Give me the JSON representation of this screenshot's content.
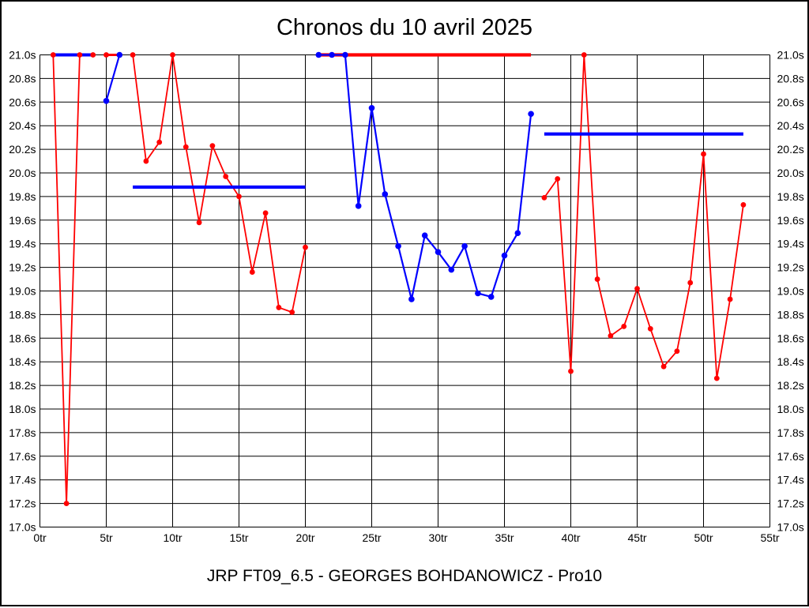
{
  "chart_data": {
    "type": "line",
    "title": "Chronos du 10 avril 2025",
    "caption": "JRP FT09_6.5 - GEORGES BOHDANOWICZ - Pro10",
    "x_unit": "tr",
    "y_unit": "s",
    "xlim": [
      0,
      55
    ],
    "ylim": [
      17.0,
      21.0
    ],
    "x_tick_step": 5,
    "y_tick_step": 0.2,
    "grid": true,
    "legend": "none",
    "colors": {
      "red": "#ff0000",
      "blue": "#0000ff",
      "grid": "#000000",
      "background": "#ffffff",
      "text": "#000000"
    },
    "x_ticks": [
      {
        "lap": 0,
        "label": "0tr"
      },
      {
        "lap": 5,
        "label": "5tr"
      },
      {
        "lap": 10,
        "label": "10tr"
      },
      {
        "lap": 15,
        "label": "15tr"
      },
      {
        "lap": 20,
        "label": "20tr"
      },
      {
        "lap": 25,
        "label": "25tr"
      },
      {
        "lap": 30,
        "label": "30tr"
      },
      {
        "lap": 35,
        "label": "35tr"
      },
      {
        "lap": 40,
        "label": "40tr"
      },
      {
        "lap": 45,
        "label": "45tr"
      },
      {
        "lap": 50,
        "label": "50tr"
      },
      {
        "lap": 55,
        "label": "55tr"
      }
    ],
    "y_ticks": [
      {
        "value": 21.0,
        "label": "21.0s"
      },
      {
        "value": 20.8,
        "label": "20.8s"
      },
      {
        "value": 20.6,
        "label": "20.6s"
      },
      {
        "value": 20.4,
        "label": "20.4s"
      },
      {
        "value": 20.2,
        "label": "20.2s"
      },
      {
        "value": 20.0,
        "label": "20.0s"
      },
      {
        "value": 19.8,
        "label": "19.8s"
      },
      {
        "value": 19.6,
        "label": "19.6s"
      },
      {
        "value": 19.4,
        "label": "19.4s"
      },
      {
        "value": 19.2,
        "label": "19.2s"
      },
      {
        "value": 19.0,
        "label": "19.0s"
      },
      {
        "value": 18.8,
        "label": "18.8s"
      },
      {
        "value": 18.6,
        "label": "18.6s"
      },
      {
        "value": 18.4,
        "label": "18.4s"
      },
      {
        "value": 18.2,
        "label": "18.2s"
      },
      {
        "value": 18.0,
        "label": "18.0s"
      },
      {
        "value": 17.8,
        "label": "17.8s"
      },
      {
        "value": 17.6,
        "label": "17.6s"
      },
      {
        "value": 17.4,
        "label": "17.4s"
      },
      {
        "value": 17.2,
        "label": "17.2s"
      },
      {
        "value": 17.0,
        "label": "17.0s"
      }
    ],
    "series": [
      {
        "name": "red-laps",
        "color_key": "red",
        "marker": "circle",
        "marker_radius": 3.4,
        "line_width": 1.8,
        "segments": [
          {
            "layer": 3,
            "draw_line": true,
            "points": [
              [
                1,
                21.0
              ],
              [
                2,
                17.2
              ],
              [
                3,
                21.0
              ]
            ]
          },
          {
            "layer": 3,
            "draw_line": false,
            "points": [
              [
                4,
                21.0
              ]
            ]
          },
          {
            "layer": 3,
            "draw_line": true,
            "line_width": 3,
            "points": [
              [
                5,
                21.0
              ],
              [
                6,
                21.0
              ]
            ]
          },
          {
            "layer": 3,
            "draw_line": true,
            "points": [
              [
                7,
                21.0
              ],
              [
                8,
                20.1
              ],
              [
                9,
                20.26
              ],
              [
                10,
                21.0
              ],
              [
                11,
                20.22
              ],
              [
                12,
                19.58
              ],
              [
                13,
                20.23
              ],
              [
                14,
                19.97
              ],
              [
                15,
                19.8
              ],
              [
                16,
                19.16
              ],
              [
                17,
                19.66
              ],
              [
                18,
                18.86
              ],
              [
                19,
                18.82
              ],
              [
                20,
                19.37
              ]
            ]
          },
          {
            "layer": 3,
            "draw_line": true,
            "points": [
              [
                38,
                19.79
              ],
              [
                39,
                19.95
              ],
              [
                40,
                18.32
              ],
              [
                41,
                21.0
              ],
              [
                42,
                19.1
              ],
              [
                43,
                18.62
              ],
              [
                44,
                18.7
              ],
              [
                45,
                19.02
              ],
              [
                46,
                18.68
              ],
              [
                47,
                18.36
              ],
              [
                48,
                18.49
              ],
              [
                49,
                19.07
              ],
              [
                50,
                20.16
              ],
              [
                51,
                18.26
              ],
              [
                52,
                18.93
              ],
              [
                53,
                19.73
              ]
            ]
          }
        ]
      },
      {
        "name": "blue-laps",
        "color_key": "blue",
        "marker": "circle",
        "marker_radius": 3.8,
        "line_width": 2.2,
        "segments": [
          {
            "layer": 1,
            "draw_line": true,
            "line_width": 4,
            "show_markers": false,
            "points": [
              [
                1,
                21.0
              ],
              [
                4,
                21.0
              ]
            ]
          },
          {
            "layer": 5,
            "draw_line": true,
            "points": [
              [
                5,
                20.61
              ],
              [
                6,
                21.0
              ]
            ]
          },
          {
            "layer": 5,
            "draw_line": true,
            "points": [
              [
                21,
                21.0
              ],
              [
                22,
                21.0
              ],
              [
                23,
                21.0
              ],
              [
                24,
                19.72
              ],
              [
                25,
                20.55
              ],
              [
                26,
                19.82
              ],
              [
                27,
                19.38
              ],
              [
                28,
                18.93
              ],
              [
                29,
                19.47
              ],
              [
                30,
                19.33
              ],
              [
                31,
                19.18
              ],
              [
                32,
                19.38
              ],
              [
                33,
                18.98
              ],
              [
                34,
                18.95
              ],
              [
                35,
                19.3
              ],
              [
                36,
                19.49
              ],
              [
                37,
                20.5
              ]
            ]
          }
        ]
      }
    ],
    "reference_lines": [
      {
        "name": "red-clipped-line",
        "layer": 2,
        "color_key": "red",
        "value": 21.0,
        "from_lap": 21,
        "to_lap": 37,
        "width": 4.2
      },
      {
        "name": "blue-average-line-1",
        "layer": 4,
        "color_key": "blue",
        "value": 19.88,
        "from_lap": 7,
        "to_lap": 20,
        "width": 4.2
      },
      {
        "name": "blue-average-line-2",
        "layer": 4,
        "color_key": "blue",
        "value": 20.33,
        "from_lap": 38,
        "to_lap": 53,
        "width": 4.2
      }
    ]
  }
}
